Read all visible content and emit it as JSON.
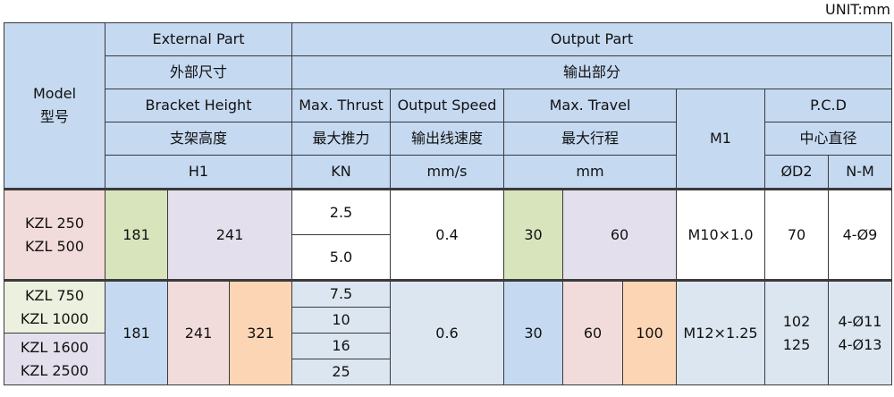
{
  "unit": "UNIT:mm",
  "header": {
    "model_en": "Model",
    "model_cn": "型号",
    "external_en": "External Part",
    "external_cn": "外部尺寸",
    "output_en": "Output Part",
    "output_cn": "输出部分",
    "bracket_en": "Bracket Height",
    "bracket_cn": "支架高度",
    "bracket_unit": "H1",
    "thrust_en": "Max. Thrust",
    "thrust_cn": "最大推力",
    "thrust_unit": "KN",
    "speed_en": "Output Speed",
    "speed_cn": "输出线速度",
    "speed_unit": "mm/s",
    "travel_en": "Max. Travel",
    "travel_cn": "最大行程",
    "travel_unit": "mm",
    "m1": "M1",
    "pcd_en": "P.C.D",
    "pcd_cn": "中心直径",
    "d2": "ØD2",
    "nm": "N-M"
  },
  "groups": [
    {
      "models": [
        [
          "KZL 250",
          "KZL 500"
        ]
      ],
      "h1": [
        "181",
        "241"
      ],
      "thrust": [
        "2.5",
        "5.0"
      ],
      "speed": "0.4",
      "travel": [
        "30",
        "60"
      ],
      "m1": "M10×1.0",
      "d2": [
        "70"
      ],
      "nm": [
        "4-Ø9"
      ]
    },
    {
      "models": [
        [
          "KZL 750",
          "KZL 1000"
        ],
        [
          "KZL 1600",
          "KZL 2500"
        ]
      ],
      "h1": [
        "181",
        "241",
        "321"
      ],
      "thrust": [
        "7.5",
        "10",
        "16",
        "25"
      ],
      "speed": "0.6",
      "travel": [
        "30",
        "60",
        "100"
      ],
      "m1": "M12×1.25",
      "d2": [
        "102",
        "125"
      ],
      "nm": [
        "4-Ø11",
        "4-Ø13"
      ]
    }
  ]
}
